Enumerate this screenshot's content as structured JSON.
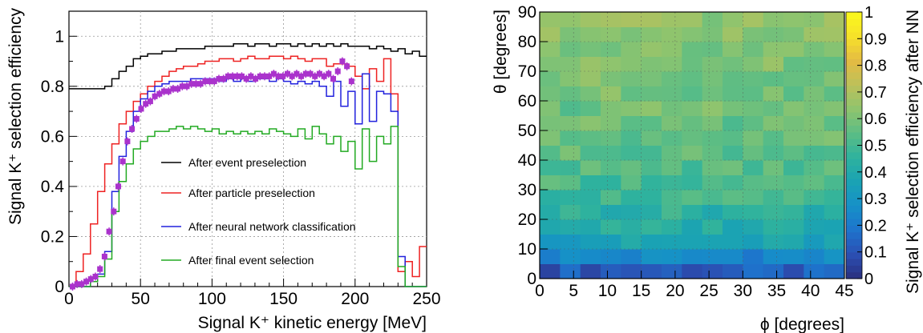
{
  "chart_data": [
    {
      "type": "line",
      "xlabel": "Signal K⁺ kinetic energy [MeV]",
      "ylabel": "Signal K⁺ selection efficiency",
      "xlim": [
        0,
        250
      ],
      "ylim": [
        0,
        1.1
      ],
      "x_ticks": [
        "0",
        "50",
        "100",
        "150",
        "200",
        "250"
      ],
      "y_ticks": [
        "0",
        "0.2",
        "0.4",
        "0.6",
        "0.8",
        "1"
      ],
      "grid": true,
      "legend_position": "center",
      "bin_width": 5,
      "x_start": 0,
      "series": [
        {
          "name": "After event preselection",
          "color": "#000000",
          "style": "step",
          "values": [
            0.79,
            0.79,
            0.79,
            0.79,
            0.79,
            0.8,
            0.83,
            0.86,
            0.88,
            0.91,
            0.92,
            0.93,
            0.93,
            0.94,
            0.94,
            0.95,
            0.95,
            0.95,
            0.95,
            0.96,
            0.96,
            0.96,
            0.96,
            0.97,
            0.97,
            0.96,
            0.97,
            0.97,
            0.96,
            0.97,
            0.97,
            0.96,
            0.97,
            0.96,
            0.97,
            0.96,
            0.97,
            0.96,
            0.97,
            0.96,
            0.96,
            0.96,
            0.95,
            0.96,
            0.95,
            0.94,
            0.95,
            0.93,
            0.94,
            0.92
          ]
        },
        {
          "name": "After particle preselection",
          "color": "#ee2222",
          "style": "step",
          "values": [
            0.0,
            0.06,
            0.13,
            0.25,
            0.38,
            0.49,
            0.57,
            0.65,
            0.7,
            0.74,
            0.77,
            0.8,
            0.82,
            0.84,
            0.86,
            0.87,
            0.88,
            0.88,
            0.89,
            0.9,
            0.9,
            0.91,
            0.91,
            0.9,
            0.91,
            0.92,
            0.91,
            0.91,
            0.92,
            0.92,
            0.91,
            0.92,
            0.91,
            0.9,
            0.91,
            0.91,
            0.88,
            0.89,
            0.89,
            0.88,
            0.84,
            0.79,
            0.87,
            0.82,
            0.91,
            0.77,
            0.06,
            0.1,
            0.04,
            0.16
          ]
        },
        {
          "name": "After neural network classification",
          "color": "#2222dd",
          "style": "step",
          "values": [
            0.0,
            0.0,
            0.0,
            0.02,
            0.05,
            0.14,
            0.38,
            0.52,
            0.62,
            0.7,
            0.75,
            0.78,
            0.8,
            0.81,
            0.82,
            0.82,
            0.82,
            0.83,
            0.83,
            0.83,
            0.83,
            0.82,
            0.83,
            0.82,
            0.83,
            0.82,
            0.83,
            0.83,
            0.82,
            0.83,
            0.82,
            0.81,
            0.82,
            0.81,
            0.82,
            0.8,
            0.76,
            0.82,
            0.72,
            0.78,
            0.65,
            0.85,
            0.66,
            0.78,
            0.77,
            0.7,
            0.12,
            0.0,
            0.0,
            0.0
          ]
        },
        {
          "name": "After final event selection",
          "color": "#22aa22",
          "style": "step",
          "values": [
            0.0,
            0.0,
            0.0,
            0.02,
            0.04,
            0.11,
            0.3,
            0.42,
            0.49,
            0.55,
            0.58,
            0.6,
            0.62,
            0.62,
            0.63,
            0.64,
            0.63,
            0.64,
            0.63,
            0.62,
            0.63,
            0.61,
            0.62,
            0.61,
            0.62,
            0.61,
            0.62,
            0.61,
            0.63,
            0.62,
            0.61,
            0.6,
            0.63,
            0.59,
            0.64,
            0.61,
            0.57,
            0.6,
            0.54,
            0.58,
            0.47,
            0.63,
            0.5,
            0.6,
            0.57,
            0.64,
            0.08,
            0.0,
            0.0,
            0.0
          ]
        },
        {
          "name": "",
          "color": "#aa33cc",
          "style": "points",
          "values": [
            0.0,
            0.01,
            0.01,
            0.02,
            0.03,
            0.04,
            0.07,
            0.12,
            0.22,
            0.3,
            0.4,
            0.5,
            0.58,
            0.63,
            0.67,
            0.71,
            0.73,
            0.74,
            0.76,
            0.77,
            0.78,
            0.78,
            0.79,
            0.79,
            0.8,
            0.8,
            0.81,
            0.81,
            0.81,
            0.82,
            0.82,
            0.82,
            0.83,
            0.83,
            0.84,
            0.84,
            0.84,
            0.84,
            0.83,
            0.84,
            0.83,
            0.84,
            0.84,
            0.84,
            0.85,
            0.84,
            0.84,
            0.85,
            0.84,
            0.85,
            0.84,
            0.85,
            0.85,
            0.84,
            0.85,
            0.84,
            0.85,
            0.83,
            0.86,
            0.9,
            0.88,
            0.82
          ]
        }
      ]
    },
    {
      "type": "heatmap",
      "xlabel": "ϕ  [degrees]",
      "ylabel": "θ  [degrees]",
      "colorbar_label": "Signal K⁺ selection efficiency after NN",
      "x_range": [
        0,
        45
      ],
      "y_range": [
        0,
        90
      ],
      "nx": 15,
      "ny": 18,
      "x_ticks": [
        "0",
        "5",
        "10",
        "15",
        "20",
        "25",
        "30",
        "35",
        "40",
        "45"
      ],
      "y_ticks": [
        "0",
        "10",
        "20",
        "30",
        "40",
        "50",
        "60",
        "70",
        "80",
        "90"
      ],
      "colorbar_ticks": [
        "0",
        "0.1",
        "0.2",
        "0.3",
        "0.4",
        "0.5",
        "0.6",
        "0.7",
        "0.8",
        "0.9",
        "1"
      ],
      "zlim": [
        0,
        1
      ],
      "grid": true,
      "row_mean": [
        0.12,
        0.25,
        0.36,
        0.42,
        0.45,
        0.49,
        0.51,
        0.53,
        0.55,
        0.56,
        0.57,
        0.58,
        0.59,
        0.6,
        0.61,
        0.62,
        0.62,
        0.63
      ],
      "colorscale": [
        "#2a2f7e",
        "#2b4fb3",
        "#1e73cc",
        "#1690c8",
        "#1aa2b4",
        "#2eb29e",
        "#5bbd85",
        "#8ec46e",
        "#bdc15a",
        "#e4bb43",
        "#f6e12a",
        "#fbf91c"
      ]
    }
  ]
}
